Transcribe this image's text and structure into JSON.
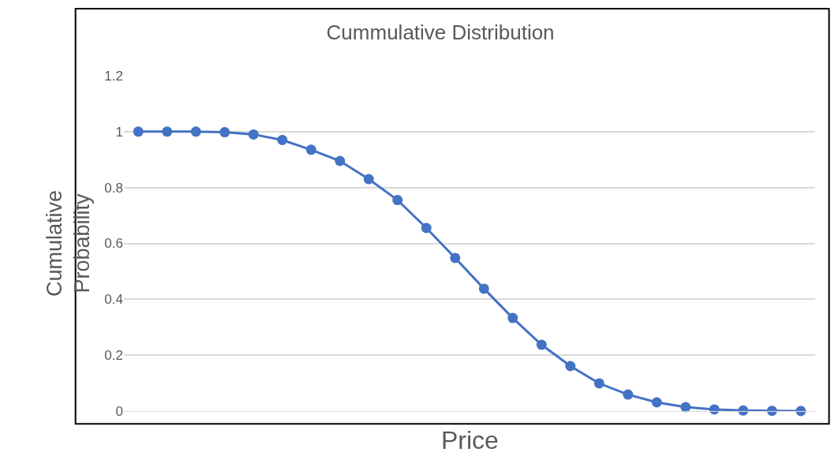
{
  "chart_data": {
    "type": "line",
    "title": "Cummulative Distribution",
    "xlabel": "Price",
    "ylabel": "Cumulative Probability",
    "categories": [
      null,
      null,
      null,
      null,
      null,
      null,
      null,
      null,
      null,
      null,
      null,
      null,
      null,
      null,
      null,
      null,
      null,
      null,
      null,
      null,
      null,
      null,
      null,
      null
    ],
    "series": [
      {
        "color": "#4472c4",
        "values": [
          1.0,
          1.0,
          1.0,
          0.998,
          0.99,
          0.97,
          0.935,
          0.895,
          0.83,
          0.755,
          0.655,
          0.548,
          0.438,
          0.333,
          0.237,
          0.161,
          0.099,
          0.059,
          0.031,
          0.014,
          0.006,
          0.002,
          0.001,
          0.0
        ]
      }
    ],
    "ylim": [
      0,
      1.2
    ],
    "yticks": [
      0,
      0.2,
      0.4,
      0.6,
      0.8,
      1,
      1.2
    ],
    "grid": "y",
    "marker": "circle",
    "line_style": "solid",
    "tick_labels": "y"
  }
}
